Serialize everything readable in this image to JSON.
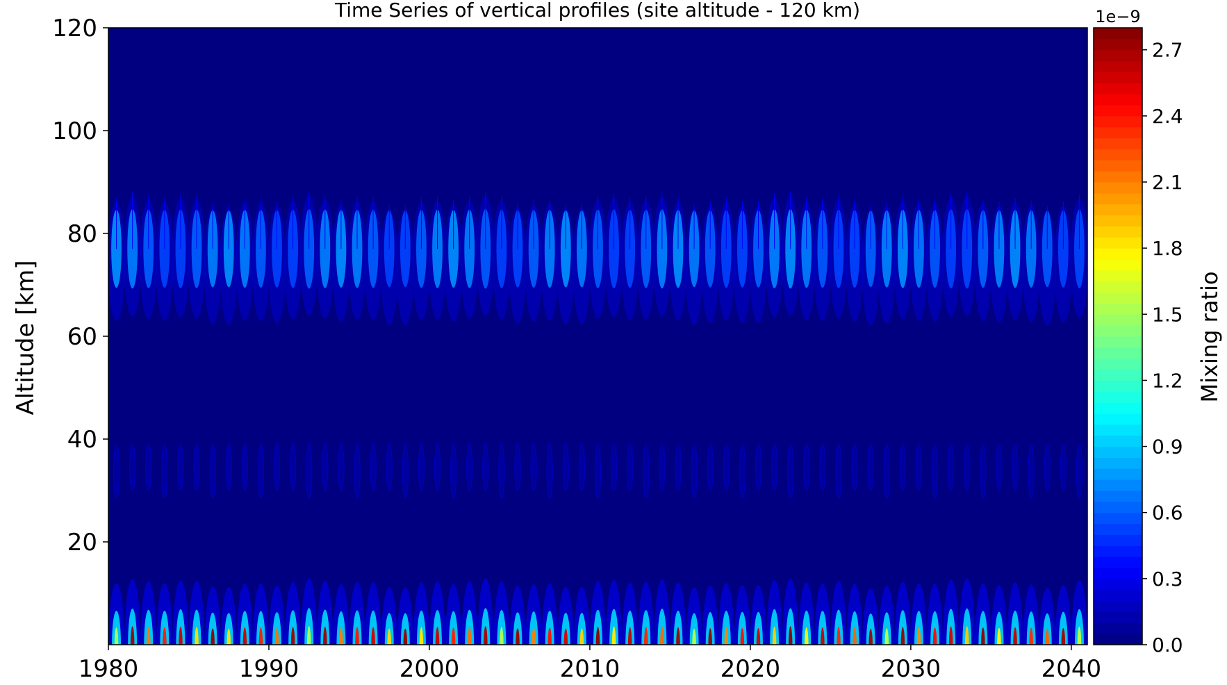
{
  "chart_data": {
    "type": "heatmap",
    "title": "Time Series of vertical profiles (site altitude - 120 km)",
    "xlabel": "",
    "ylabel": "Altitude [km]",
    "xlim": [
      1980,
      2041
    ],
    "ylim": [
      0,
      120
    ],
    "x_ticks": [
      "1980",
      "1990",
      "2000",
      "2010",
      "2020",
      "2030",
      "2040"
    ],
    "x_tick_values": [
      1980,
      1990,
      2000,
      2010,
      2020,
      2030,
      2040
    ],
    "y_ticks": [
      "20",
      "40",
      "60",
      "80",
      "100",
      "120"
    ],
    "y_tick_values": [
      20,
      40,
      60,
      80,
      100,
      120
    ],
    "colormap": "jet",
    "colorbar": {
      "label": "Mixing ratio",
      "offset_text": "1e−9",
      "range": [
        0.0,
        2.8
      ],
      "ticks": [
        "0.0",
        "0.3",
        "0.6",
        "0.9",
        "1.2",
        "1.5",
        "1.8",
        "2.1",
        "2.4",
        "2.7"
      ],
      "tick_values": [
        0.0,
        0.3,
        0.6,
        0.9,
        1.2,
        1.5,
        1.8,
        2.1,
        2.4,
        2.7
      ]
    },
    "background_value": 0.0,
    "features": [
      {
        "name": "mesospheric-band",
        "altitude_range_km": [
          62,
          88
        ],
        "peak_altitude_km": 77,
        "peak_value": 0.75,
        "period_years": 1
      },
      {
        "name": "stratospheric-band",
        "altitude_range_km": [
          30,
          39
        ],
        "peak_value": 0.05,
        "period_years": 1
      },
      {
        "name": "surface-band",
        "altitude_range_km": [
          0,
          13
        ],
        "peak_value": 2.75,
        "period_years": 1
      }
    ]
  }
}
